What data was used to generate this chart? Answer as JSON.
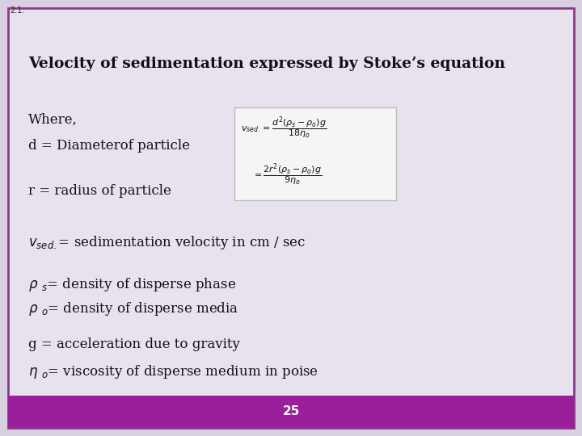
{
  "fig_bg_color": "#d8cfe0",
  "slide_bg_color": "#e8e2ee",
  "border_color": "#8b3a8b",
  "footer_color": "#9b1f9b",
  "footer_text": "25",
  "footer_text_color": "#ffffff",
  "slide_number": "2.1.",
  "slide_number_color": "#333333",
  "title": "Velocity of sedimentation expressed by Stoke’s equation",
  "title_color": "#111111",
  "title_fontsize": 13.5,
  "body_color": "#111111",
  "body_fontsize": 12,
  "eq_box_bg": "#f5f5f5",
  "eq_box_border": "#bbbbbb"
}
